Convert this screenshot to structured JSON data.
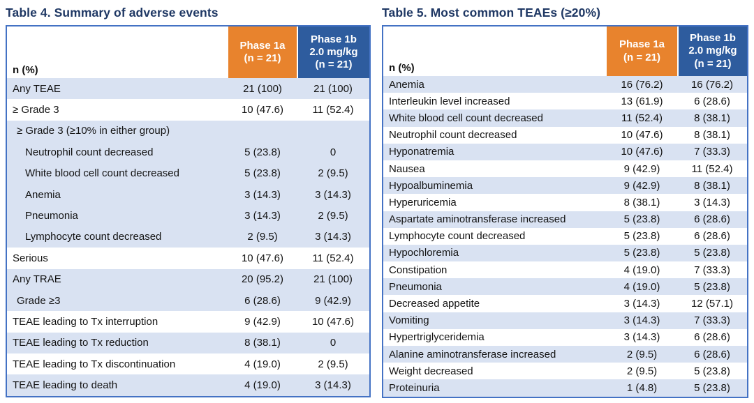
{
  "colors": {
    "title_navy": "#1F3864",
    "phase1a_orange": "#E8832D",
    "phase1b_blue": "#2E5C9E",
    "row_light_blue": "#D9E2F2",
    "row_white": "#FFFFFF",
    "table_border_blue": "#4472C4",
    "header_text": "#FFFFFF",
    "body_text": "#131313"
  },
  "table4": {
    "title": "Table 4. Summary of adverse events",
    "header": {
      "name_col": "n (%)",
      "phase1a": "Phase 1a\n(n = 21)",
      "phase1b": "Phase 1b\n2.0 mg/kg\n(n = 21)"
    },
    "rows": [
      {
        "label": "Any TEAE",
        "v1": "21 (100)",
        "v2": "21 (100)",
        "bg": "blue",
        "indent": 0
      },
      {
        "label": "≥ Grade 3",
        "v1": "10 (47.6)",
        "v2": "11 (52.4)",
        "bg": "white",
        "indent": 0
      },
      {
        "label": "≥ Grade 3 (≥10% in either group)",
        "v1": "",
        "v2": "",
        "bg": "blue",
        "indent": 1
      },
      {
        "label": "Neutrophil count decreased",
        "v1": "5 (23.8)",
        "v2": "0",
        "bg": "blue",
        "indent": 2
      },
      {
        "label": "White blood cell count decreased",
        "v1": "5 (23.8)",
        "v2": "2 (9.5)",
        "bg": "blue",
        "indent": 2
      },
      {
        "label": "Anemia",
        "v1": "3 (14.3)",
        "v2": "3 (14.3)",
        "bg": "blue",
        "indent": 2
      },
      {
        "label": "Pneumonia",
        "v1": "3 (14.3)",
        "v2": "2 (9.5)",
        "bg": "blue",
        "indent": 2
      },
      {
        "label": "Lymphocyte count decreased",
        "v1": "2 (9.5)",
        "v2": "3 (14.3)",
        "bg": "blue",
        "indent": 2
      },
      {
        "label": "Serious",
        "v1": "10 (47.6)",
        "v2": "11 (52.4)",
        "bg": "white",
        "indent": 0
      },
      {
        "label": "Any TRAE",
        "v1": "20 (95.2)",
        "v2": "21 (100)",
        "bg": "blue",
        "indent": 0
      },
      {
        "label": "Grade ≥3",
        "v1": "6 (28.6)",
        "v2": "9 (42.9)",
        "bg": "blue",
        "indent": 1
      },
      {
        "label": "TEAE leading to Tx interruption",
        "v1": "9 (42.9)",
        "v2": "10 (47.6)",
        "bg": "white",
        "indent": 0
      },
      {
        "label": "TEAE leading to Tx reduction",
        "v1": "8 (38.1)",
        "v2": "0",
        "bg": "blue",
        "indent": 0
      },
      {
        "label": "TEAE leading to Tx discontinuation",
        "v1": "4 (19.0)",
        "v2": "2 (9.5)",
        "bg": "white",
        "indent": 0
      },
      {
        "label": "TEAE leading to death",
        "v1": "4 (19.0)",
        "v2": "3 (14.3)",
        "bg": "blue",
        "indent": 0
      }
    ]
  },
  "table5": {
    "title": "Table 5. Most common TEAEs (≥20%)",
    "header": {
      "name_col": "n (%)",
      "phase1a": "Phase 1a\n(n = 21)",
      "phase1b": "Phase 1b\n2.0 mg/kg\n(n = 21)"
    },
    "rows": [
      {
        "label": "Anemia",
        "v1": "16 (76.2)",
        "v2": "16 (76.2)",
        "bg": "blue",
        "indent": 0
      },
      {
        "label": "Interleukin level increased",
        "v1": "13 (61.9)",
        "v2": "6 (28.6)",
        "bg": "white",
        "indent": 0
      },
      {
        "label": "White blood cell count decreased",
        "v1": "11 (52.4)",
        "v2": "8 (38.1)",
        "bg": "blue",
        "indent": 0
      },
      {
        "label": "Neutrophil count decreased",
        "v1": "10 (47.6)",
        "v2": "8 (38.1)",
        "bg": "white",
        "indent": 0
      },
      {
        "label": "Hyponatremia",
        "v1": "10 (47.6)",
        "v2": "7 (33.3)",
        "bg": "blue",
        "indent": 0
      },
      {
        "label": "Nausea",
        "v1": "9 (42.9)",
        "v2": "11 (52.4)",
        "bg": "white",
        "indent": 0
      },
      {
        "label": "Hypoalbuminemia",
        "v1": "9 (42.9)",
        "v2": "8 (38.1)",
        "bg": "blue",
        "indent": 0
      },
      {
        "label": "Hyperuricemia",
        "v1": "8 (38.1)",
        "v2": "3 (14.3)",
        "bg": "white",
        "indent": 0
      },
      {
        "label": "Aspartate aminotransferase increased",
        "v1": "5 (23.8)",
        "v2": "6 (28.6)",
        "bg": "blue",
        "indent": 0
      },
      {
        "label": "Lymphocyte count decreased",
        "v1": "5 (23.8)",
        "v2": "6 (28.6)",
        "bg": "white",
        "indent": 0
      },
      {
        "label": "Hypochloremia",
        "v1": "5 (23.8)",
        "v2": "5 (23.8)",
        "bg": "blue",
        "indent": 0
      },
      {
        "label": "Constipation",
        "v1": "4 (19.0)",
        "v2": "7 (33.3)",
        "bg": "white",
        "indent": 0
      },
      {
        "label": "Pneumonia",
        "v1": "4 (19.0)",
        "v2": "5 (23.8)",
        "bg": "blue",
        "indent": 0
      },
      {
        "label": "Decreased appetite",
        "v1": "3 (14.3)",
        "v2": "12 (57.1)",
        "bg": "white",
        "indent": 0
      },
      {
        "label": "Vomiting",
        "v1": "3 (14.3)",
        "v2": "7 (33.3)",
        "bg": "blue",
        "indent": 0
      },
      {
        "label": "Hypertriglyceridemia",
        "v1": "3 (14.3)",
        "v2": "6 (28.6)",
        "bg": "white",
        "indent": 0
      },
      {
        "label": "Alanine aminotransferase increased",
        "v1": "2 (9.5)",
        "v2": "6 (28.6)",
        "bg": "blue",
        "indent": 0
      },
      {
        "label": "Weight decreased",
        "v1": "2 (9.5)",
        "v2": "5 (23.8)",
        "bg": "white",
        "indent": 0
      },
      {
        "label": "Proteinuria",
        "v1": "1 (4.8)",
        "v2": "5 (23.8)",
        "bg": "blue",
        "indent": 0
      }
    ]
  }
}
